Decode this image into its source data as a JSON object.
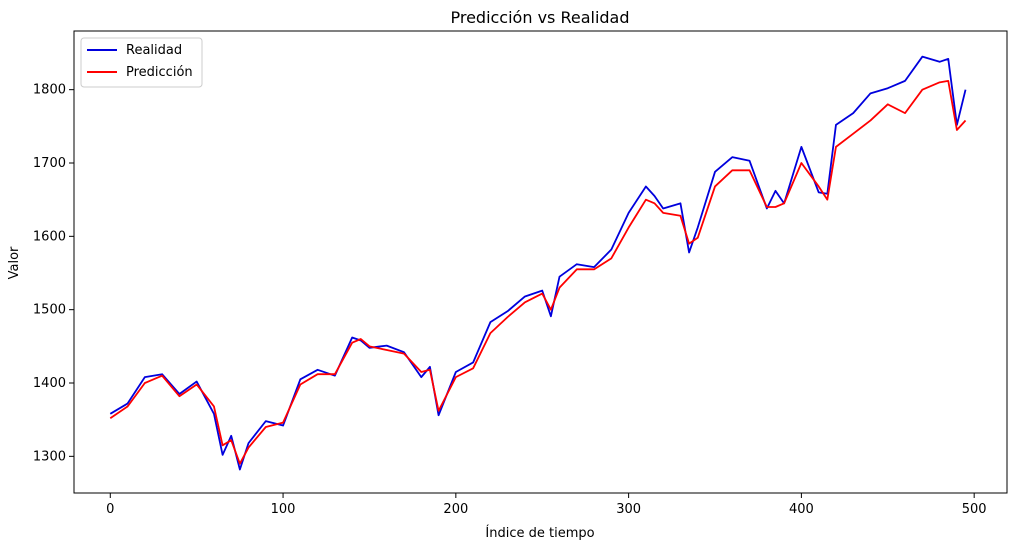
{
  "chart_data": {
    "type": "line",
    "title": "Predicción vs Realidad",
    "xlabel": "Índice de tiempo",
    "ylabel": "Valor",
    "xlim": [
      -21,
      519
    ],
    "ylim": [
      1250,
      1880
    ],
    "xticks": [
      0,
      100,
      200,
      300,
      400,
      500
    ],
    "yticks": [
      1300,
      1400,
      1500,
      1600,
      1700,
      1800
    ],
    "grid": false,
    "legend_position": "top-left",
    "x": [
      0,
      10,
      20,
      30,
      40,
      50,
      60,
      65,
      70,
      75,
      80,
      90,
      100,
      110,
      120,
      130,
      140,
      145,
      150,
      160,
      170,
      180,
      185,
      190,
      200,
      210,
      220,
      230,
      240,
      250,
      255,
      260,
      270,
      280,
      290,
      300,
      310,
      315,
      320,
      330,
      335,
      340,
      350,
      360,
      370,
      380,
      385,
      390,
      400,
      410,
      415,
      420,
      430,
      440,
      450,
      460,
      470,
      480,
      485,
      490,
      495
    ],
    "series": [
      {
        "name": "Realidad",
        "color": "#0000dd",
        "values": [
          1358,
          1372,
          1408,
          1412,
          1385,
          1402,
          1358,
          1302,
          1328,
          1282,
          1318,
          1348,
          1342,
          1405,
          1418,
          1410,
          1462,
          1458,
          1448,
          1451,
          1442,
          1408,
          1422,
          1356,
          1415,
          1428,
          1483,
          1498,
          1518,
          1526,
          1491,
          1545,
          1562,
          1558,
          1582,
          1632,
          1668,
          1655,
          1638,
          1645,
          1578,
          1612,
          1688,
          1708,
          1703,
          1638,
          1662,
          1645,
          1722,
          1660,
          1658,
          1752,
          1768,
          1795,
          1802,
          1812,
          1845,
          1838,
          1842,
          1752,
          1800
        ]
      },
      {
        "name": "Predicción",
        "color": "#ff0000",
        "values": [
          1352,
          1368,
          1400,
          1410,
          1382,
          1398,
          1368,
          1315,
          1322,
          1290,
          1312,
          1340,
          1346,
          1398,
          1412,
          1412,
          1455,
          1460,
          1450,
          1445,
          1440,
          1415,
          1418,
          1362,
          1408,
          1420,
          1468,
          1490,
          1510,
          1522,
          1500,
          1530,
          1555,
          1555,
          1570,
          1612,
          1650,
          1645,
          1632,
          1628,
          1590,
          1598,
          1668,
          1690,
          1690,
          1640,
          1640,
          1645,
          1700,
          1668,
          1650,
          1722,
          1740,
          1758,
          1780,
          1768,
          1800,
          1810,
          1812,
          1745,
          1758
        ]
      }
    ]
  }
}
